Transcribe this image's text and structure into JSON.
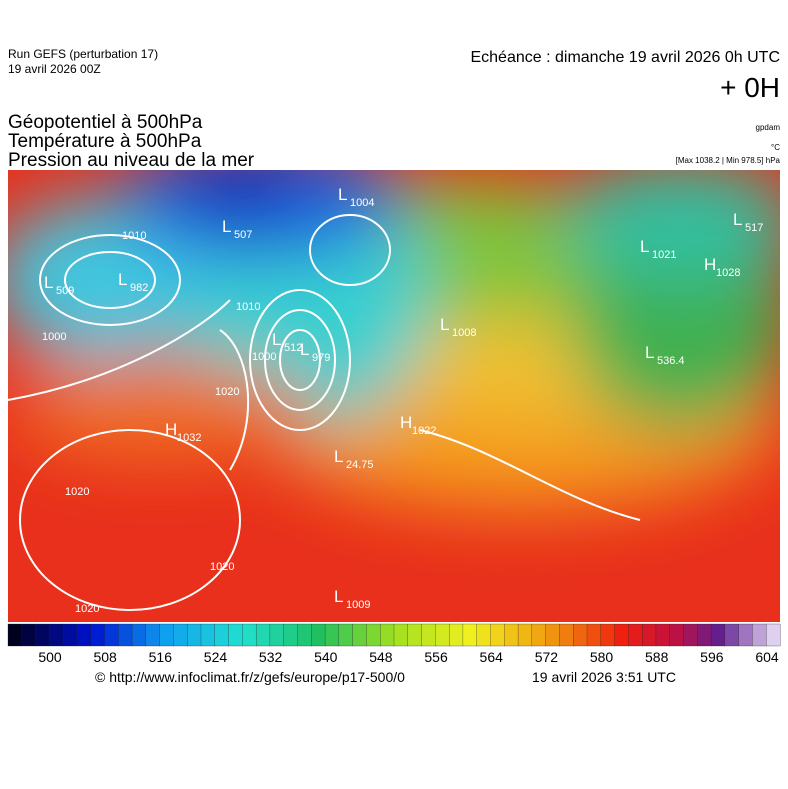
{
  "header": {
    "run": "Run GEFS (perturbation 17)",
    "date": "19 avril 2026 00Z",
    "echeance": "Echéance : dimanche 19 avril 2026 0h UTC",
    "lead": "+ 0H"
  },
  "titles": [
    "Géopotentiel à 500hPa",
    "Température à 500hPa",
    "Pression au niveau de la mer"
  ],
  "units": [
    "gpdam",
    "°C",
    "[Max 1038.2 | Min 978.5] hPa"
  ],
  "colorbar": {
    "labels": [
      500,
      508,
      516,
      524,
      532,
      540,
      548,
      556,
      564,
      572,
      580,
      588,
      596,
      604
    ]
  },
  "footer": {
    "source": "© http://www.infoclimat.fr/z/gefs/europe/p17-500/0",
    "time": "19 avril 2026  3:51 UTC"
  },
  "map_labels": [
    {
      "symbol": "H",
      "value": "1032"
    },
    {
      "symbol": "H",
      "value": "1022"
    },
    {
      "symbol": "L",
      "value": "1009"
    },
    {
      "symbol": "L",
      "value": "1008"
    },
    {
      "symbol": "H",
      "value": "1028"
    },
    {
      "symbol": "L",
      "value": "1021"
    },
    {
      "symbol": "L",
      "value": "517"
    },
    {
      "symbol": "L",
      "value": "536.4"
    },
    {
      "symbol": "L",
      "value": "24.75"
    },
    {
      "symbol": "L",
      "value": "509"
    },
    {
      "symbol": "L",
      "value": "982"
    },
    {
      "symbol": "L",
      "value": "507"
    },
    {
      "symbol": "L",
      "value": "1004"
    },
    {
      "symbol": "L",
      "value": "979"
    },
    {
      "symbol": "L",
      "value": "512"
    }
  ],
  "contour_labels": [
    "1020",
    "1020",
    "1020",
    "1010",
    "1000",
    "1020",
    "1010",
    "1000"
  ]
}
